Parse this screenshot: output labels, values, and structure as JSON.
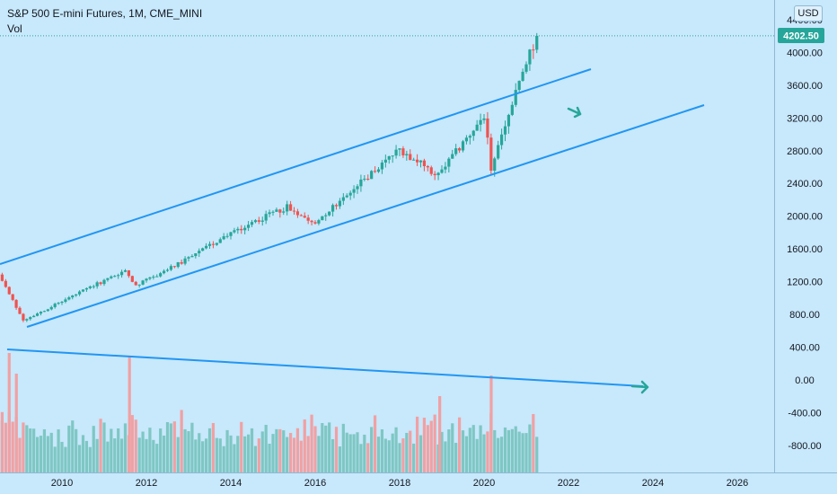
{
  "header": {
    "title": "S&P 500 E-mini Futures, 1M, CME_MINI",
    "volume_label": "Vol"
  },
  "currency_button": "USD",
  "price_axis": {
    "ticks": [
      "4400.00",
      "4000.00",
      "3600.00",
      "3200.00",
      "2800.00",
      "2400.00",
      "2000.00",
      "1600.00",
      "1200.00",
      "800.00",
      "400.00",
      "0.00",
      "-400.00",
      "-800.00"
    ],
    "current_price_label": "4202.50"
  },
  "time_axis": {
    "ticks": [
      "2010",
      "2012",
      "2014",
      "2016",
      "2018",
      "2020",
      "2022",
      "2024",
      "2026"
    ]
  },
  "colors": {
    "background": "#c8e8fb",
    "up_candle": "#26a69a",
    "down_candle": "#ef5350",
    "up_volume": "#7ec7c4",
    "down_volume": "#f0a1a4",
    "trendline": "#2196f3",
    "arrow": "#26a69a",
    "price_line": "#26a69a"
  },
  "chart_data": {
    "type": "candlestick",
    "title": "S&P 500 E-mini Futures, 1M, CME_MINI",
    "interval": "1M",
    "x_range": [
      "2008-07",
      "2027-03"
    ],
    "y_range": [
      -1000,
      4550
    ],
    "last_price": 4202.5,
    "anchor_points": [
      {
        "date": "2008-07",
        "price": 1280
      },
      {
        "date": "2009-02",
        "price": 730
      },
      {
        "date": "2011-07",
        "price": 1340
      },
      {
        "date": "2011-10",
        "price": 1150
      },
      {
        "date": "2013-01",
        "price": 1480
      },
      {
        "date": "2014-01",
        "price": 1800
      },
      {
        "date": "2015-05",
        "price": 2110
      },
      {
        "date": "2016-01",
        "price": 1930
      },
      {
        "date": "2018-01",
        "price": 2820
      },
      {
        "date": "2018-12",
        "price": 2500
      },
      {
        "date": "2020-01",
        "price": 3230
      },
      {
        "date": "2020-03",
        "price": 2590
      },
      {
        "date": "2020-12",
        "price": 3750
      },
      {
        "date": "2021-04",
        "price": 4202.5
      }
    ],
    "volume_note": "Volume histogram plotted on the same price scale in the lower band"
  }
}
